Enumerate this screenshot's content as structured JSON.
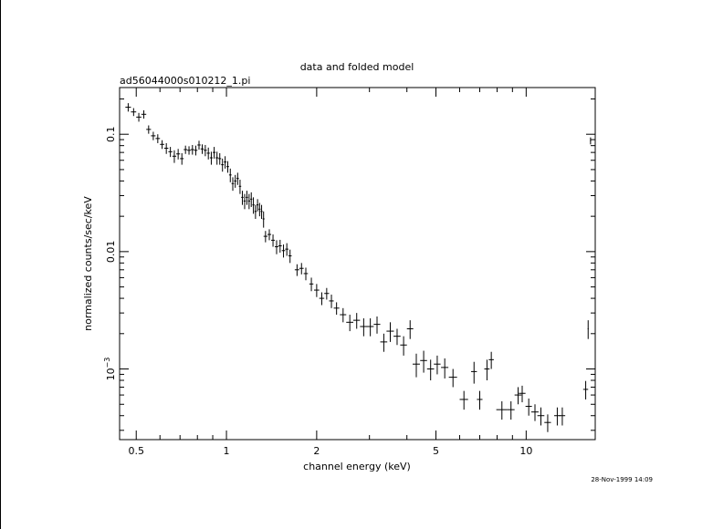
{
  "chart_data": {
    "type": "scatter",
    "title": "data and folded model",
    "subtitle": "ad56044000s010212_1.pi",
    "xlabel": "channel energy (keV)",
    "ylabel": "normalized counts/sec/keV",
    "timestamp": "28-Nov-1999 14:09",
    "x_scale": "log",
    "y_scale": "log",
    "xlim": [
      0.44,
      17.0
    ],
    "ylim": [
      0.00025,
      0.25
    ],
    "x_ticks": [
      {
        "value": 0.5,
        "label": "0.5"
      },
      {
        "value": 1,
        "label": "1"
      },
      {
        "value": 2,
        "label": "2"
      },
      {
        "value": 5,
        "label": "5"
      },
      {
        "value": 10,
        "label": "10"
      }
    ],
    "y_ticks": [
      {
        "value": 0.1,
        "label": "0.1"
      },
      {
        "value": 0.01,
        "label": "0.01"
      },
      {
        "value": 0.001,
        "label": "10",
        "exp": "−3"
      }
    ],
    "grid": false,
    "series": [
      {
        "points": [
          [
            0.47,
            0.17,
            0.01,
            0.014
          ],
          [
            0.49,
            0.155,
            0.01,
            0.012
          ],
          [
            0.51,
            0.14,
            0.01,
            0.012
          ],
          [
            0.53,
            0.148,
            0.01,
            0.012
          ],
          [
            0.55,
            0.11,
            0.01,
            0.009
          ],
          [
            0.57,
            0.097,
            0.01,
            0.008
          ],
          [
            0.59,
            0.092,
            0.01,
            0.008
          ],
          [
            0.61,
            0.082,
            0.01,
            0.007
          ],
          [
            0.63,
            0.076,
            0.01,
            0.008
          ],
          [
            0.65,
            0.071,
            0.01,
            0.007
          ],
          [
            0.67,
            0.065,
            0.01,
            0.008
          ],
          [
            0.69,
            0.068,
            0.01,
            0.007
          ],
          [
            0.71,
            0.062,
            0.01,
            0.007
          ],
          [
            0.73,
            0.074,
            0.01,
            0.006
          ],
          [
            0.75,
            0.073,
            0.01,
            0.006
          ],
          [
            0.77,
            0.074,
            0.01,
            0.007
          ],
          [
            0.79,
            0.073,
            0.01,
            0.007
          ],
          [
            0.81,
            0.081,
            0.01,
            0.007
          ],
          [
            0.83,
            0.075,
            0.01,
            0.007
          ],
          [
            0.85,
            0.073,
            0.01,
            0.008
          ],
          [
            0.87,
            0.069,
            0.01,
            0.008
          ],
          [
            0.89,
            0.063,
            0.01,
            0.008
          ],
          [
            0.91,
            0.07,
            0.01,
            0.008
          ],
          [
            0.93,
            0.063,
            0.01,
            0.008
          ],
          [
            0.95,
            0.062,
            0.01,
            0.007
          ],
          [
            0.97,
            0.055,
            0.01,
            0.007
          ],
          [
            0.99,
            0.058,
            0.01,
            0.007
          ],
          [
            1.01,
            0.053,
            0.01,
            0.006
          ],
          [
            1.03,
            0.045,
            0.01,
            0.006
          ],
          [
            1.05,
            0.038,
            0.01,
            0.005
          ],
          [
            1.07,
            0.04,
            0.01,
            0.005
          ],
          [
            1.09,
            0.042,
            0.01,
            0.005
          ],
          [
            1.11,
            0.036,
            0.01,
            0.005
          ],
          [
            1.13,
            0.029,
            0.01,
            0.004
          ],
          [
            1.15,
            0.027,
            0.01,
            0.004
          ],
          [
            1.17,
            0.029,
            0.01,
            0.004
          ],
          [
            1.19,
            0.027,
            0.01,
            0.004
          ],
          [
            1.21,
            0.028,
            0.01,
            0.004
          ],
          [
            1.23,
            0.025,
            0.01,
            0.004
          ],
          [
            1.25,
            0.022,
            0.01,
            0.003
          ],
          [
            1.27,
            0.025,
            0.01,
            0.003
          ],
          [
            1.29,
            0.023,
            0.01,
            0.003
          ],
          [
            1.31,
            0.022,
            0.01,
            0.003
          ],
          [
            1.33,
            0.019,
            0.01,
            0.003
          ],
          [
            1.35,
            0.0135,
            0.02,
            0.0015
          ],
          [
            1.39,
            0.014,
            0.02,
            0.0015
          ],
          [
            1.43,
            0.0125,
            0.02,
            0.0015
          ],
          [
            1.47,
            0.011,
            0.02,
            0.0015
          ],
          [
            1.51,
            0.0112,
            0.02,
            0.0014
          ],
          [
            1.55,
            0.0102,
            0.02,
            0.0013
          ],
          [
            1.59,
            0.0105,
            0.02,
            0.0013
          ],
          [
            1.63,
            0.0092,
            0.02,
            0.0012
          ],
          [
            1.72,
            0.007,
            0.03,
            0.0008
          ],
          [
            1.78,
            0.0072,
            0.03,
            0.0008
          ],
          [
            1.84,
            0.0065,
            0.03,
            0.0008
          ],
          [
            1.92,
            0.0053,
            0.03,
            0.0007
          ],
          [
            2.0,
            0.0047,
            0.04,
            0.0006
          ],
          [
            2.08,
            0.004,
            0.04,
            0.0005
          ],
          [
            2.16,
            0.0044,
            0.04,
            0.0005
          ],
          [
            2.24,
            0.0038,
            0.04,
            0.0005
          ],
          [
            2.33,
            0.0033,
            0.05,
            0.0004
          ],
          [
            2.45,
            0.0029,
            0.06,
            0.0004
          ],
          [
            2.58,
            0.0025,
            0.07,
            0.0004
          ],
          [
            2.72,
            0.0026,
            0.07,
            0.0004
          ],
          [
            2.87,
            0.0023,
            0.08,
            0.0004
          ],
          [
            3.02,
            0.0023,
            0.08,
            0.0004
          ],
          [
            3.18,
            0.0024,
            0.08,
            0.0004
          ],
          [
            3.35,
            0.0017,
            0.09,
            0.0003
          ],
          [
            3.52,
            0.0021,
            0.1,
            0.0004
          ],
          [
            3.71,
            0.0019,
            0.1,
            0.0003
          ],
          [
            3.9,
            0.0016,
            0.1,
            0.0003
          ],
          [
            4.1,
            0.0022,
            0.1,
            0.0004
          ],
          [
            4.3,
            0.0011,
            0.12,
            0.00025
          ],
          [
            4.55,
            0.00118,
            0.12,
            0.00025
          ],
          [
            4.8,
            0.001,
            0.13,
            0.0002
          ],
          [
            5.05,
            0.0011,
            0.13,
            0.0002
          ],
          [
            5.35,
            0.00103,
            0.15,
            0.0002
          ],
          [
            5.7,
            0.00085,
            0.18,
            0.00015
          ],
          [
            6.2,
            0.00055,
            0.2,
            0.0001
          ],
          [
            6.7,
            0.00095,
            0.15,
            0.0002
          ],
          [
            7.0,
            0.00055,
            0.15,
            0.0001
          ],
          [
            7.4,
            0.001,
            0.15,
            0.0002
          ],
          [
            7.65,
            0.0012,
            0.15,
            0.0002
          ],
          [
            8.3,
            0.00045,
            0.35,
            8e-05
          ],
          [
            8.9,
            0.00045,
            0.25,
            8e-05
          ],
          [
            9.4,
            0.0006,
            0.25,
            0.0001
          ],
          [
            9.7,
            0.00062,
            0.25,
            0.0001
          ],
          [
            10.2,
            0.00048,
            0.25,
            8e-05
          ],
          [
            10.7,
            0.00043,
            0.3,
            7e-05
          ],
          [
            11.2,
            0.0004,
            0.3,
            7e-05
          ],
          [
            11.8,
            0.00035,
            0.3,
            6e-05
          ],
          [
            12.7,
            0.0004,
            0.3,
            7e-05
          ],
          [
            13.2,
            0.0004,
            0.3,
            7e-05
          ],
          [
            15.8,
            0.00067,
            0.3,
            0.00012
          ],
          [
            16.1,
            0.0022,
            0.06,
            0.0004
          ],
          [
            16.4,
            0.088,
            0.06,
            0.006
          ]
        ]
      }
    ]
  }
}
